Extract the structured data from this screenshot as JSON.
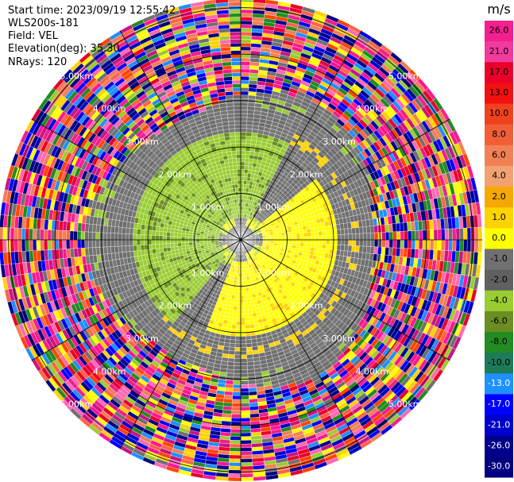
{
  "header": {
    "start_time": "Start time: 2023/09/19 12:55:42",
    "site": "WLS200s-181",
    "field": "Field: VEL",
    "elevation": "Elevation(deg): 35.30",
    "nrays": "NRays: 120"
  },
  "colorbar": {
    "unit": "m/s",
    "ticks": [
      "26.0",
      "21.0",
      "17.0",
      "13.0",
      "10.0",
      "8.0",
      "6.0",
      "4.0",
      "2.0",
      "1.0",
      "0.0",
      "-1.0",
      "-2.0",
      "-4.0",
      "-6.0",
      "-8.0",
      "-10.0",
      "-13.0",
      "-17.0",
      "-21.0",
      "-26.0",
      "-30.0"
    ],
    "colors": [
      "#f21f8e",
      "#f23a9d",
      "#e8002b",
      "#f21010",
      "#f2411e",
      "#f25f37",
      "#f28055",
      "#f2a270",
      "#f5a800",
      "#ffd200",
      "#ffff00",
      "#707070",
      "#606060",
      "#9acd32",
      "#6b8e23",
      "#228b22",
      "#1e7b5a",
      "#1e90ff",
      "#0000ff",
      "#0000cd",
      "#00008b",
      "#000080"
    ]
  },
  "chart_data": {
    "type": "ppi",
    "field": "VEL",
    "unit": "m/s",
    "nrays": 120,
    "elevation_deg": 35.3,
    "range_labels": [
      "1.00km",
      "2.00km",
      "3.00km",
      "4.00km",
      "5.00km"
    ],
    "range_rings_km": [
      1,
      2,
      3,
      4,
      5
    ],
    "max_range_km": 5.2
  }
}
